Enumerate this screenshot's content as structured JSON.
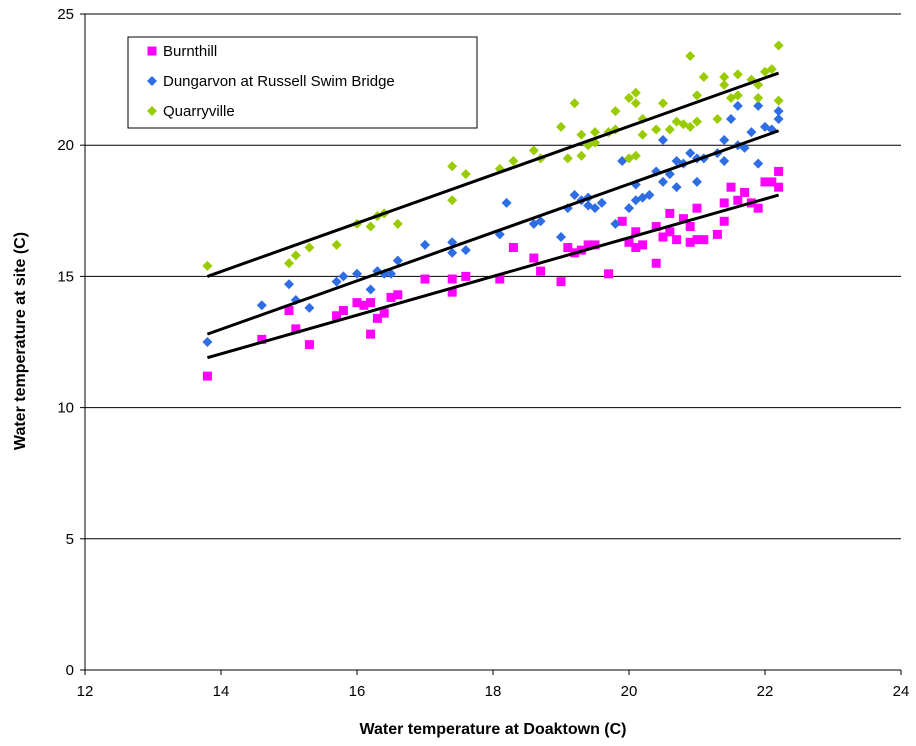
{
  "chart_data": {
    "type": "scatter",
    "title": "",
    "xlabel": "Water temperature at Doaktown (C)",
    "ylabel": "Water temperature at site (C)",
    "xlim": [
      12,
      24
    ],
    "ylim": [
      0,
      25
    ],
    "xticks": [
      "12",
      "14",
      "16",
      "18",
      "20",
      "22",
      "24"
    ],
    "yticks": [
      "0",
      "5",
      "10",
      "15",
      "20",
      "25"
    ],
    "grid": "horizontal",
    "legend_position": "top-left",
    "series": [
      {
        "name": "Burnthill",
        "color": "#ff00ff",
        "marker": "square",
        "points": [
          [
            13.8,
            11.2
          ],
          [
            14.6,
            12.6
          ],
          [
            15.0,
            13.7
          ],
          [
            15.1,
            13.0
          ],
          [
            15.3,
            12.4
          ],
          [
            15.7,
            13.5
          ],
          [
            15.8,
            13.7
          ],
          [
            16.0,
            14.0
          ],
          [
            16.1,
            13.9
          ],
          [
            16.2,
            12.8
          ],
          [
            16.2,
            14.0
          ],
          [
            16.3,
            13.4
          ],
          [
            16.4,
            13.6
          ],
          [
            16.5,
            14.2
          ],
          [
            16.6,
            14.3
          ],
          [
            17.0,
            14.9
          ],
          [
            17.4,
            14.4
          ],
          [
            17.4,
            14.9
          ],
          [
            17.6,
            15.0
          ],
          [
            18.1,
            14.9
          ],
          [
            18.3,
            16.1
          ],
          [
            18.6,
            15.7
          ],
          [
            18.7,
            15.2
          ],
          [
            19.0,
            14.8
          ],
          [
            19.1,
            16.1
          ],
          [
            19.2,
            15.9
          ],
          [
            19.3,
            16.0
          ],
          [
            19.4,
            16.2
          ],
          [
            19.5,
            16.2
          ],
          [
            19.7,
            15.1
          ],
          [
            19.9,
            17.1
          ],
          [
            20.0,
            16.3
          ],
          [
            20.1,
            16.7
          ],
          [
            20.1,
            16.1
          ],
          [
            20.2,
            16.2
          ],
          [
            20.4,
            15.5
          ],
          [
            20.4,
            16.9
          ],
          [
            20.5,
            16.5
          ],
          [
            20.6,
            16.7
          ],
          [
            20.6,
            17.4
          ],
          [
            20.7,
            16.4
          ],
          [
            20.8,
            17.2
          ],
          [
            20.9,
            16.9
          ],
          [
            20.9,
            16.3
          ],
          [
            21.0,
            17.6
          ],
          [
            21.0,
            16.4
          ],
          [
            21.1,
            16.4
          ],
          [
            21.3,
            16.6
          ],
          [
            21.4,
            17.1
          ],
          [
            21.4,
            17.8
          ],
          [
            21.5,
            18.4
          ],
          [
            21.6,
            17.9
          ],
          [
            21.7,
            18.2
          ],
          [
            21.8,
            17.8
          ],
          [
            21.9,
            17.6
          ],
          [
            22.0,
            18.6
          ],
          [
            22.1,
            18.6
          ],
          [
            22.2,
            19.0
          ],
          [
            22.2,
            18.4
          ]
        ]
      },
      {
        "name": "Dungarvon at Russell Swim Bridge",
        "color": "#2e6de3",
        "marker": "diamond",
        "points": [
          [
            13.8,
            12.5
          ],
          [
            14.6,
            13.9
          ],
          [
            15.0,
            14.7
          ],
          [
            15.1,
            14.1
          ],
          [
            15.3,
            13.8
          ],
          [
            15.7,
            14.8
          ],
          [
            15.8,
            15.0
          ],
          [
            16.0,
            15.1
          ],
          [
            16.2,
            14.5
          ],
          [
            16.3,
            15.2
          ],
          [
            16.4,
            15.1
          ],
          [
            16.5,
            15.1
          ],
          [
            16.6,
            15.6
          ],
          [
            17.0,
            16.2
          ],
          [
            17.4,
            15.9
          ],
          [
            17.4,
            16.3
          ],
          [
            17.6,
            16.0
          ],
          [
            18.1,
            16.6
          ],
          [
            18.2,
            17.8
          ],
          [
            18.6,
            17.0
          ],
          [
            18.7,
            17.1
          ],
          [
            19.0,
            16.5
          ],
          [
            19.1,
            17.6
          ],
          [
            19.2,
            18.1
          ],
          [
            19.3,
            17.9
          ],
          [
            19.4,
            17.7
          ],
          [
            19.4,
            18.0
          ],
          [
            19.5,
            17.6
          ],
          [
            19.6,
            17.8
          ],
          [
            19.8,
            17.0
          ],
          [
            19.9,
            19.4
          ],
          [
            20.0,
            17.6
          ],
          [
            20.1,
            18.5
          ],
          [
            20.1,
            17.9
          ],
          [
            20.2,
            18.0
          ],
          [
            20.3,
            18.1
          ],
          [
            20.4,
            19.0
          ],
          [
            20.5,
            18.6
          ],
          [
            20.5,
            20.2
          ],
          [
            20.6,
            18.9
          ],
          [
            20.7,
            19.4
          ],
          [
            20.7,
            18.4
          ],
          [
            20.8,
            19.3
          ],
          [
            20.9,
            19.7
          ],
          [
            21.0,
            18.6
          ],
          [
            21.0,
            19.5
          ],
          [
            21.1,
            19.5
          ],
          [
            21.3,
            19.7
          ],
          [
            21.4,
            19.4
          ],
          [
            21.4,
            20.2
          ],
          [
            21.5,
            21.0
          ],
          [
            21.6,
            20.0
          ],
          [
            21.6,
            21.5
          ],
          [
            21.7,
            19.9
          ],
          [
            21.8,
            20.5
          ],
          [
            21.9,
            19.3
          ],
          [
            22.0,
            20.7
          ],
          [
            22.1,
            20.6
          ],
          [
            22.2,
            21.0
          ],
          [
            22.2,
            21.3
          ],
          [
            21.9,
            21.5
          ]
        ]
      },
      {
        "name": "Quarryville",
        "color": "#99cc00",
        "marker": "diamond",
        "points": [
          [
            13.8,
            15.4
          ],
          [
            15.0,
            15.5
          ],
          [
            15.1,
            15.8
          ],
          [
            15.3,
            16.1
          ],
          [
            15.7,
            16.2
          ],
          [
            16.0,
            17.0
          ],
          [
            16.2,
            16.9
          ],
          [
            16.3,
            17.3
          ],
          [
            16.4,
            17.4
          ],
          [
            16.6,
            17.0
          ],
          [
            17.4,
            19.2
          ],
          [
            17.4,
            17.9
          ],
          [
            17.6,
            18.9
          ],
          [
            18.1,
            19.1
          ],
          [
            18.3,
            19.4
          ],
          [
            18.6,
            19.8
          ],
          [
            18.7,
            19.5
          ],
          [
            19.0,
            20.7
          ],
          [
            19.1,
            19.5
          ],
          [
            19.2,
            21.6
          ],
          [
            19.3,
            20.4
          ],
          [
            19.3,
            19.6
          ],
          [
            19.4,
            20.0
          ],
          [
            19.5,
            20.5
          ],
          [
            19.5,
            20.1
          ],
          [
            19.7,
            20.5
          ],
          [
            19.8,
            21.3
          ],
          [
            19.8,
            20.6
          ],
          [
            20.0,
            21.8
          ],
          [
            20.0,
            19.5
          ],
          [
            20.1,
            22.0
          ],
          [
            20.1,
            21.6
          ],
          [
            20.2,
            21.0
          ],
          [
            20.2,
            20.4
          ],
          [
            20.1,
            19.6
          ],
          [
            20.4,
            20.6
          ],
          [
            20.5,
            21.6
          ],
          [
            20.6,
            20.6
          ],
          [
            20.7,
            20.9
          ],
          [
            20.8,
            20.8
          ],
          [
            20.9,
            23.4
          ],
          [
            20.9,
            20.7
          ],
          [
            21.0,
            21.9
          ],
          [
            21.0,
            20.9
          ],
          [
            21.1,
            22.6
          ],
          [
            21.3,
            21.0
          ],
          [
            21.4,
            22.3
          ],
          [
            21.4,
            22.6
          ],
          [
            21.5,
            21.8
          ],
          [
            21.6,
            22.7
          ],
          [
            21.6,
            21.9
          ],
          [
            21.8,
            22.5
          ],
          [
            21.9,
            21.8
          ],
          [
            21.9,
            22.3
          ],
          [
            22.0,
            22.8
          ],
          [
            22.1,
            22.9
          ],
          [
            22.2,
            23.8
          ],
          [
            22.2,
            21.7
          ]
        ]
      }
    ],
    "trendlines": [
      {
        "series": "Burnthill",
        "x": [
          13.8,
          22.2
        ],
        "y": [
          11.9,
          18.1
        ]
      },
      {
        "series": "Dungarvon at Russell Swim Bridge",
        "x": [
          13.8,
          22.2
        ],
        "y": [
          12.8,
          20.55
        ]
      },
      {
        "series": "Quarryville",
        "x": [
          13.8,
          22.2
        ],
        "y": [
          15.0,
          22.75
        ]
      }
    ]
  }
}
